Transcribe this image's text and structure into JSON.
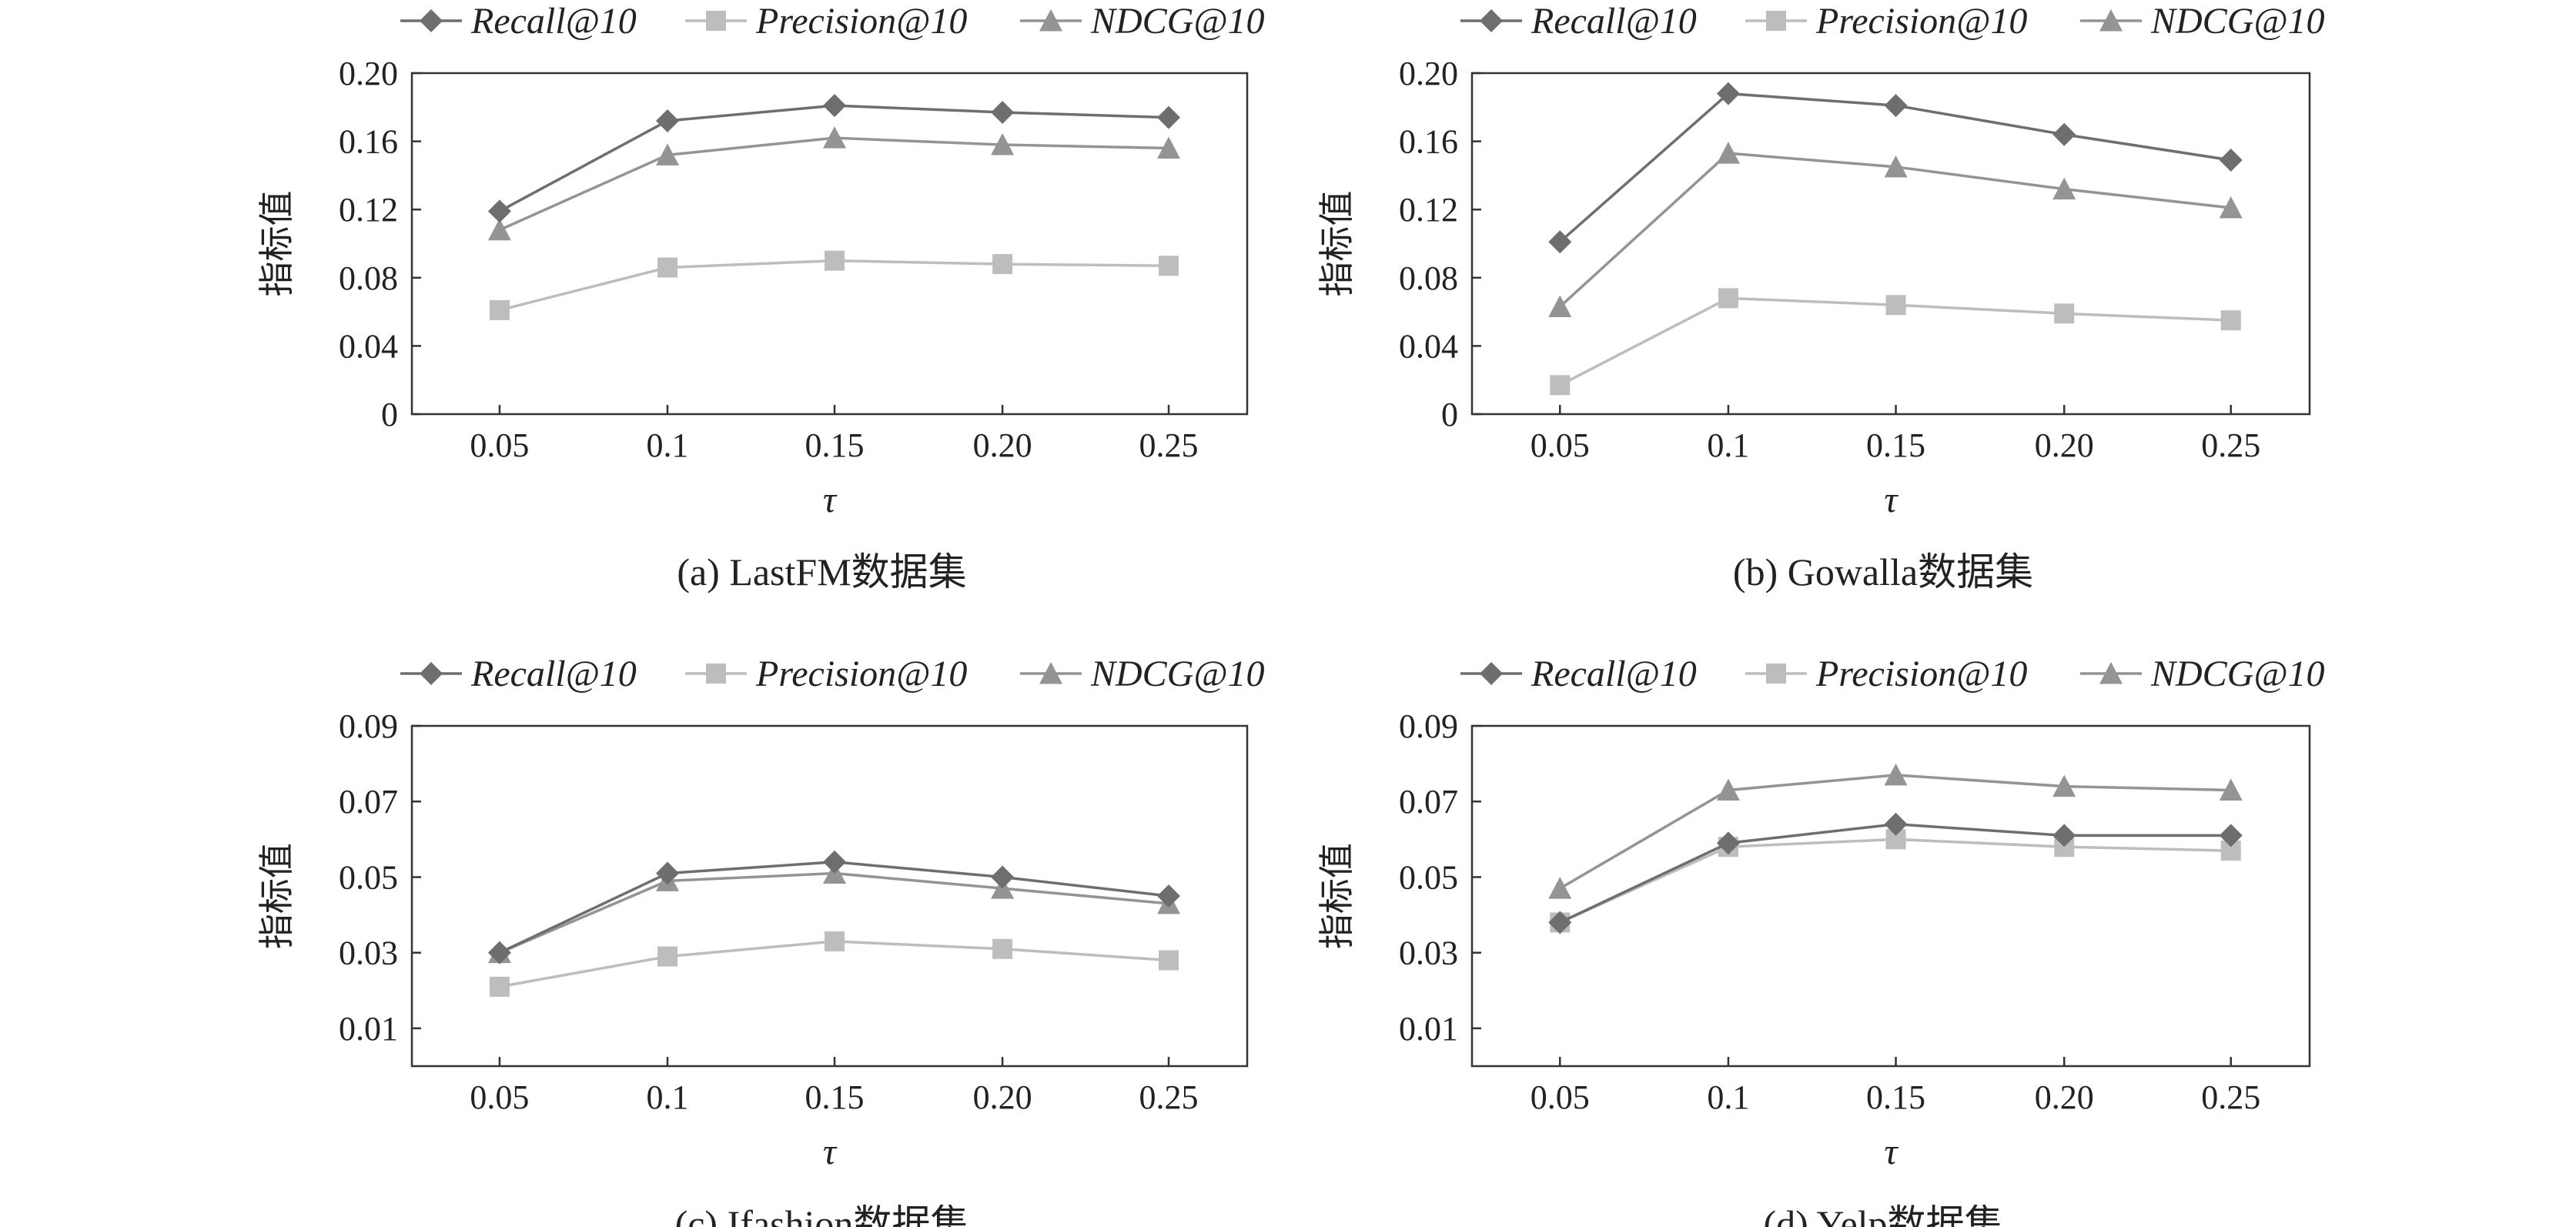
{
  "series_styles": [
    {
      "name": "Recall@10",
      "color": "#6e6e6e",
      "marker": "diamond"
    },
    {
      "name": "Precision@10",
      "color": "#bdbdbd",
      "marker": "square"
    },
    {
      "name": "NDCG@10",
      "color": "#949494",
      "marker": "triangle"
    }
  ],
  "chart_data": [
    {
      "type": "line",
      "caption": "(a)  LastFM数据集",
      "xlabel": "τ",
      "ylabel": "指标值",
      "categories": [
        "0.05",
        "0.1",
        "0.15",
        "0.20",
        "0.25"
      ],
      "ylim": [
        0,
        0.2
      ],
      "yticks": [
        "0",
        "0.04",
        "0.08",
        "0.12",
        "0.16",
        "0.20"
      ],
      "grid": false,
      "legend_position": "top",
      "series": [
        {
          "name": "Recall@10",
          "values": [
            0.119,
            0.172,
            0.181,
            0.177,
            0.174
          ]
        },
        {
          "name": "Precision@10",
          "values": [
            0.061,
            0.086,
            0.09,
            0.088,
            0.087
          ]
        },
        {
          "name": "NDCG@10",
          "values": [
            0.108,
            0.152,
            0.162,
            0.158,
            0.156
          ]
        }
      ]
    },
    {
      "type": "line",
      "caption": "(b)  Gowalla数据集",
      "xlabel": "τ",
      "ylabel": "指标值",
      "categories": [
        "0.05",
        "0.1",
        "0.15",
        "0.20",
        "0.25"
      ],
      "ylim": [
        0,
        0.2
      ],
      "yticks": [
        "0",
        "0.04",
        "0.08",
        "0.12",
        "0.16",
        "0.20"
      ],
      "grid": false,
      "legend_position": "top",
      "series": [
        {
          "name": "Recall@10",
          "values": [
            0.101,
            0.188,
            0.181,
            0.164,
            0.149
          ]
        },
        {
          "name": "Precision@10",
          "values": [
            0.017,
            0.068,
            0.064,
            0.059,
            0.055
          ]
        },
        {
          "name": "NDCG@10",
          "values": [
            0.063,
            0.153,
            0.145,
            0.132,
            0.121
          ]
        }
      ]
    },
    {
      "type": "line",
      "caption": "(c)  Ifashion数据集",
      "xlabel": "τ",
      "ylabel": "指标值",
      "categories": [
        "0.05",
        "0.1",
        "0.15",
        "0.20",
        "0.25"
      ],
      "ylim": [
        0,
        0.09
      ],
      "yticks": [
        "0.01",
        "0.03",
        "0.05",
        "0.07",
        "0.09"
      ],
      "grid": false,
      "legend_position": "top",
      "series": [
        {
          "name": "Recall@10",
          "values": [
            0.03,
            0.051,
            0.054,
            0.05,
            0.045
          ]
        },
        {
          "name": "Precision@10",
          "values": [
            0.021,
            0.029,
            0.033,
            0.031,
            0.028
          ]
        },
        {
          "name": "NDCG@10",
          "values": [
            0.03,
            0.049,
            0.051,
            0.047,
            0.043
          ]
        }
      ]
    },
    {
      "type": "line",
      "caption": "(d)  Yelp数据集",
      "xlabel": "τ",
      "ylabel": "指标值",
      "categories": [
        "0.05",
        "0.1",
        "0.15",
        "0.20",
        "0.25"
      ],
      "ylim": [
        0,
        0.09
      ],
      "yticks": [
        "0.01",
        "0.03",
        "0.05",
        "0.07",
        "0.09"
      ],
      "grid": false,
      "legend_position": "top",
      "series": [
        {
          "name": "Recall@10",
          "values": [
            0.038,
            0.059,
            0.064,
            0.061,
            0.061
          ]
        },
        {
          "name": "Precision@10",
          "values": [
            0.038,
            0.058,
            0.06,
            0.058,
            0.057
          ]
        },
        {
          "name": "NDCG@10",
          "values": [
            0.047,
            0.073,
            0.077,
            0.074,
            0.073
          ]
        }
      ]
    }
  ]
}
